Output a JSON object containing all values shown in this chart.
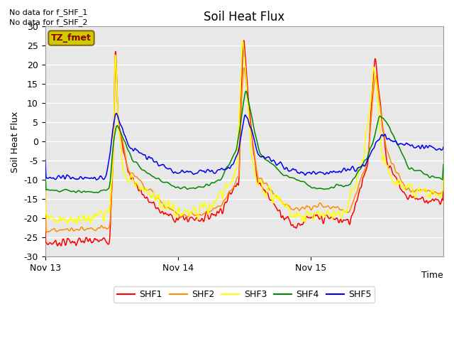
{
  "title": "Soil Heat Flux",
  "ylabel": "Soil Heat Flux",
  "xlabel": "Time",
  "ylim": [
    -30,
    30
  ],
  "background_color": "#e8e8e8",
  "annotations": [
    "No data for f_SHF_1",
    "No data for f_SHF_2"
  ],
  "box_label": "TZ_fmet",
  "box_color": "#cccc00",
  "box_text_color": "#8b0000",
  "legend_entries": [
    "SHF1",
    "SHF2",
    "SHF3",
    "SHF4",
    "SHF5"
  ],
  "line_colors": [
    "#ff0000",
    "#ff8c00",
    "#ffff00",
    "#008800",
    "#0000ee"
  ],
  "xtick_labels": [
    "Nov 13",
    "Nov 14",
    "Nov 15"
  ],
  "xtick_positions": [
    0,
    288,
    576
  ],
  "total_points": 864,
  "yticks": [
    -30,
    -25,
    -20,
    -15,
    -10,
    -5,
    0,
    5,
    10,
    15,
    20,
    25,
    30
  ]
}
